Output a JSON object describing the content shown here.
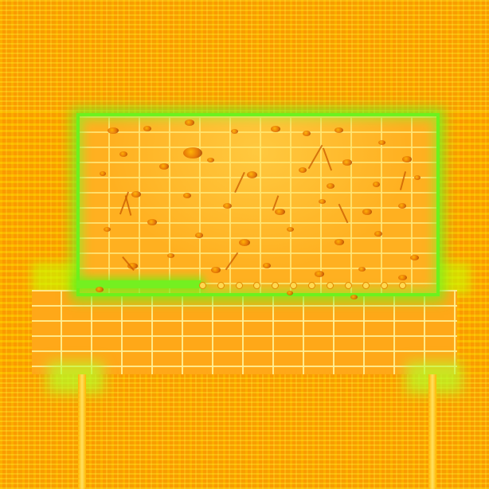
{
  "scene": {
    "palette": {
      "background": "#f5a800",
      "brick": "#ffad10",
      "mortar": "#ffeb78",
      "glow": "#6cf21e",
      "splatter": "#e06a00"
    },
    "icons": [
      "brick-wall-icon",
      "splatter-icon"
    ]
  }
}
